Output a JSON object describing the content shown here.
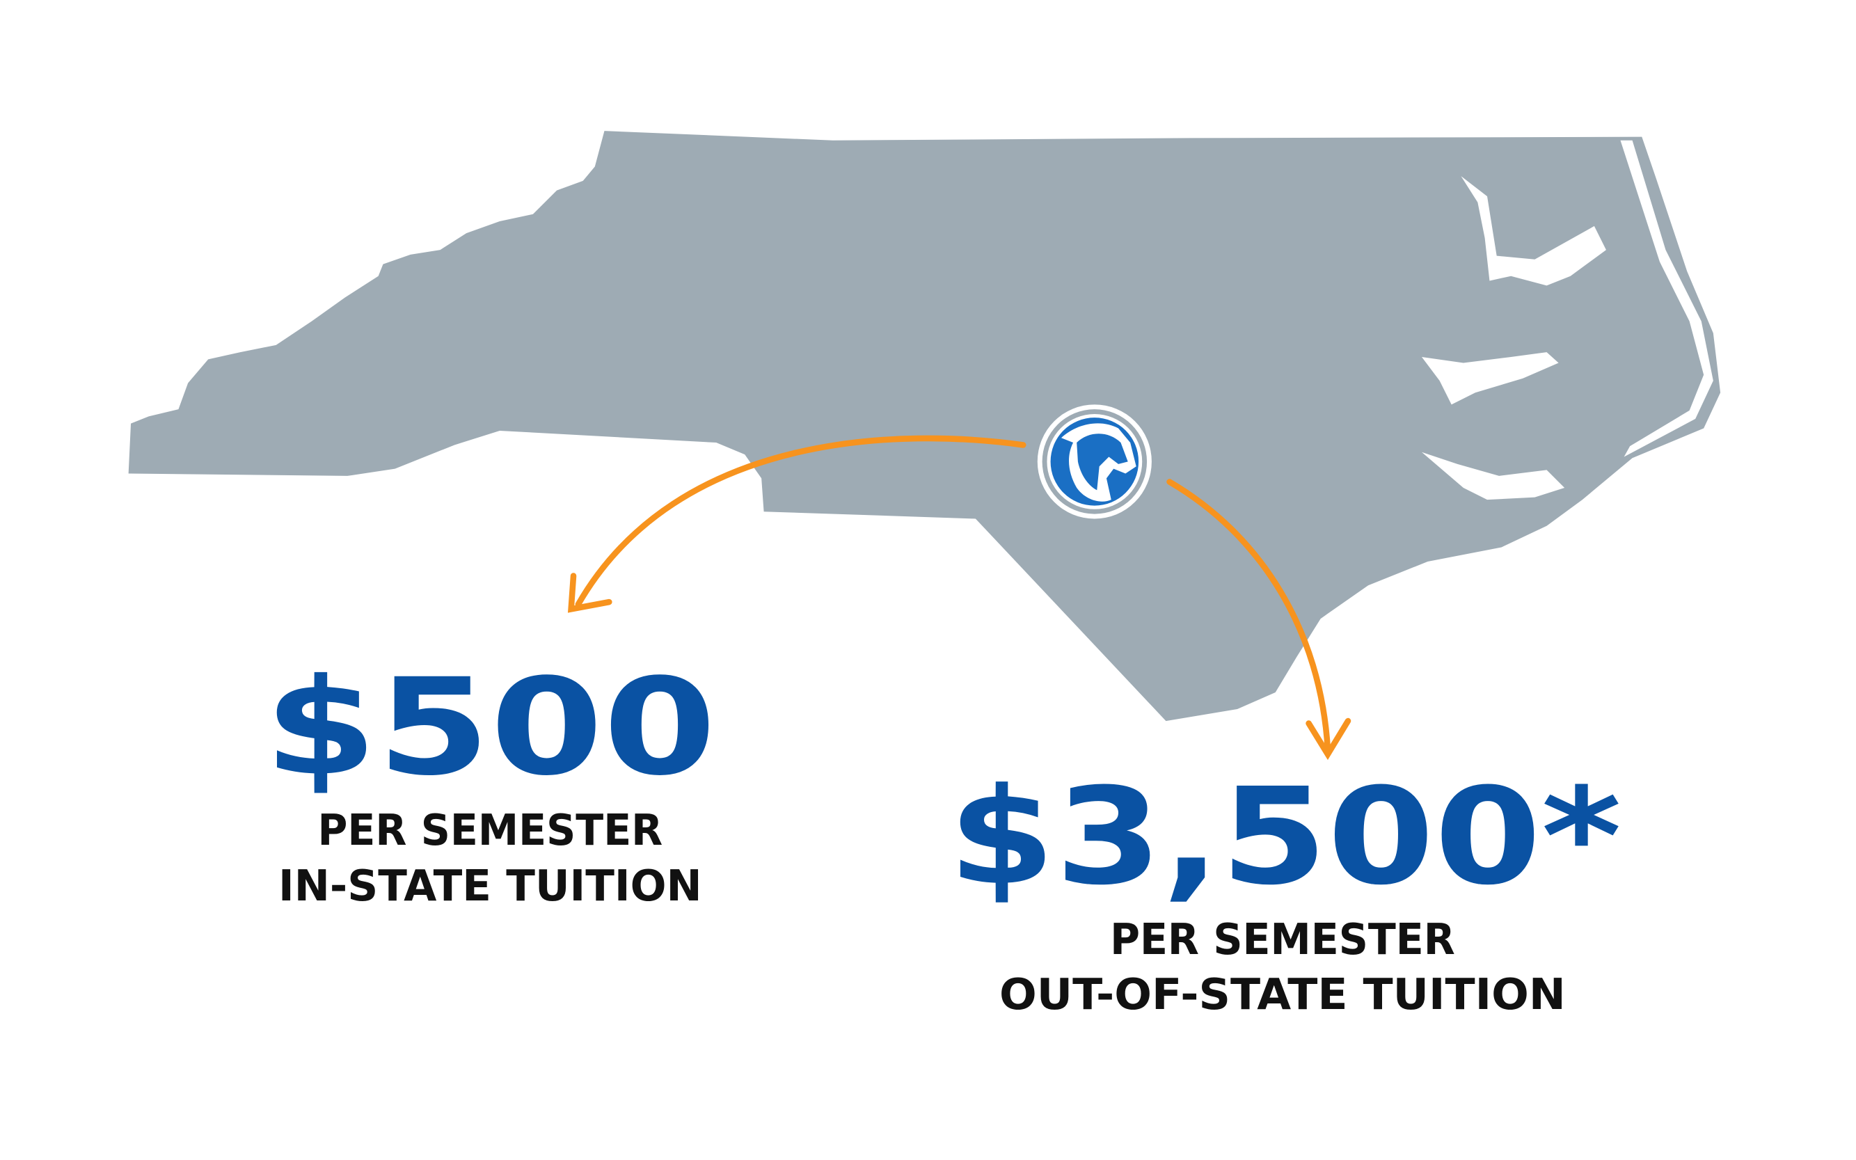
{
  "colors": {
    "map": "#9eabb4",
    "accent_blue": "#0a52a3",
    "arrow_orange": "#f7931e",
    "text": "#111111",
    "background": "#ffffff"
  },
  "map": {
    "region": "North Carolina",
    "marker_icon": "bronco-horse-head-logo"
  },
  "in_state": {
    "price": "$500",
    "line1": "PER SEMESTER",
    "line2": "IN-STATE TUITION"
  },
  "out_of_state": {
    "price": "$3,500*",
    "line1": "PER SEMESTER",
    "line2": "OUT-OF-STATE TUITION"
  }
}
